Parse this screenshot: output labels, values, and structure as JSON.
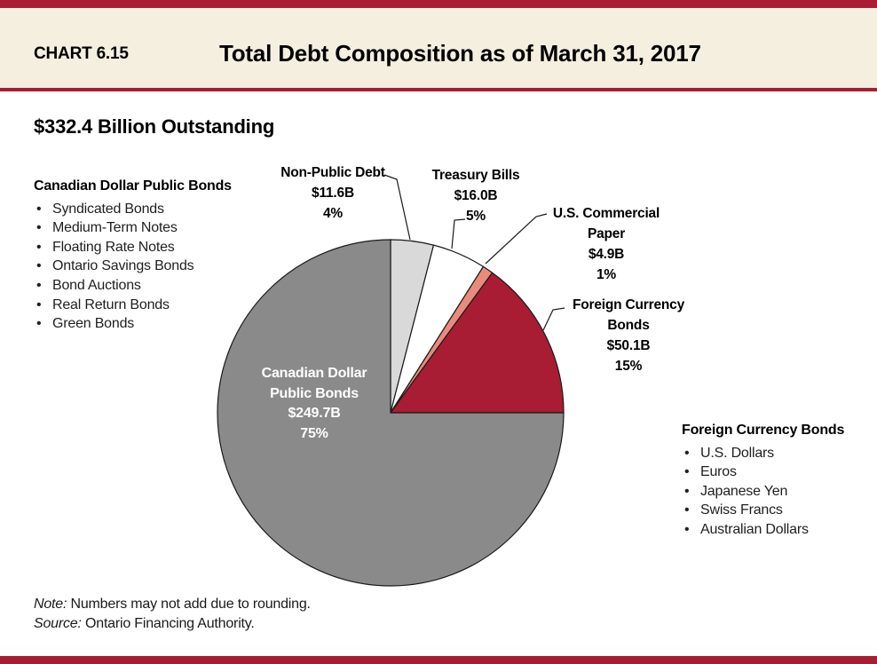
{
  "header": {
    "chart_label": "CHART 6.15",
    "title": "Total Debt Composition as of March 31, 2017"
  },
  "subtitle": "$332.4 Billion Outstanding",
  "left_list": {
    "heading": "Canadian Dollar Public Bonds",
    "items": [
      "Syndicated Bonds",
      "Medium-Term Notes",
      "Floating Rate Notes",
      "Ontario Savings Bonds",
      "Bond Auctions",
      "Real Return Bonds",
      "Green Bonds"
    ]
  },
  "right_list": {
    "heading": "Foreign Currency Bonds",
    "items": [
      "U.S. Dollars",
      "Euros",
      "Japanese Yen",
      "Swiss Francs",
      "Australian Dollars"
    ]
  },
  "callouts": {
    "non_public": {
      "line1": "Non-Public Debt",
      "line2": "$11.6B",
      "line3": "4%"
    },
    "treasury": {
      "line1": "Treasury Bills",
      "line2": "$16.0B",
      "line3": "5%"
    },
    "us_cp": {
      "line1": "U.S. Commercial",
      "line2": "Paper",
      "line3": "$4.9B",
      "line4": "1%"
    },
    "foreign": {
      "line1": "Foreign Currency",
      "line2": "Bonds",
      "line3": "$50.1B",
      "line4": "15%"
    },
    "center": {
      "line1": "Canadian Dollar",
      "line2": "Public Bonds",
      "line3": "$249.7B",
      "line4": "75%"
    }
  },
  "notes": {
    "note_label": "Note:",
    "note_text": " Numbers may not add due to rounding.",
    "source_label": "Source:",
    "source_text": " Ontario Financing Authority."
  },
  "colors": {
    "accent_red": "#a81d33",
    "header_bg": "#f4efdf",
    "outline": "#1a1a1a"
  },
  "chart_data": {
    "type": "pie",
    "title": "Total Debt Composition as of March 31, 2017",
    "total_label": "$332.4 Billion Outstanding",
    "total_billions": 332.4,
    "start_angle_deg": 0,
    "direction": "clockwise",
    "slices": [
      {
        "name": "Non-Public Debt",
        "amount": "$11.6B",
        "value_billions": 11.6,
        "percent": 4,
        "color": "#d9d9d9"
      },
      {
        "name": "Treasury Bills",
        "amount": "$16.0B",
        "value_billions": 16.0,
        "percent": 5,
        "color": "#ffffff"
      },
      {
        "name": "U.S. Commercial Paper",
        "amount": "$4.9B",
        "value_billions": 4.9,
        "percent": 1,
        "color": "#e98b7c"
      },
      {
        "name": "Foreign Currency Bonds",
        "amount": "$50.1B",
        "value_billions": 50.1,
        "percent": 15,
        "color": "#a81d33"
      },
      {
        "name": "Canadian Dollar Public Bonds",
        "amount": "$249.7B",
        "value_billions": 249.7,
        "percent": 75,
        "color": "#8a8a8a"
      }
    ]
  }
}
